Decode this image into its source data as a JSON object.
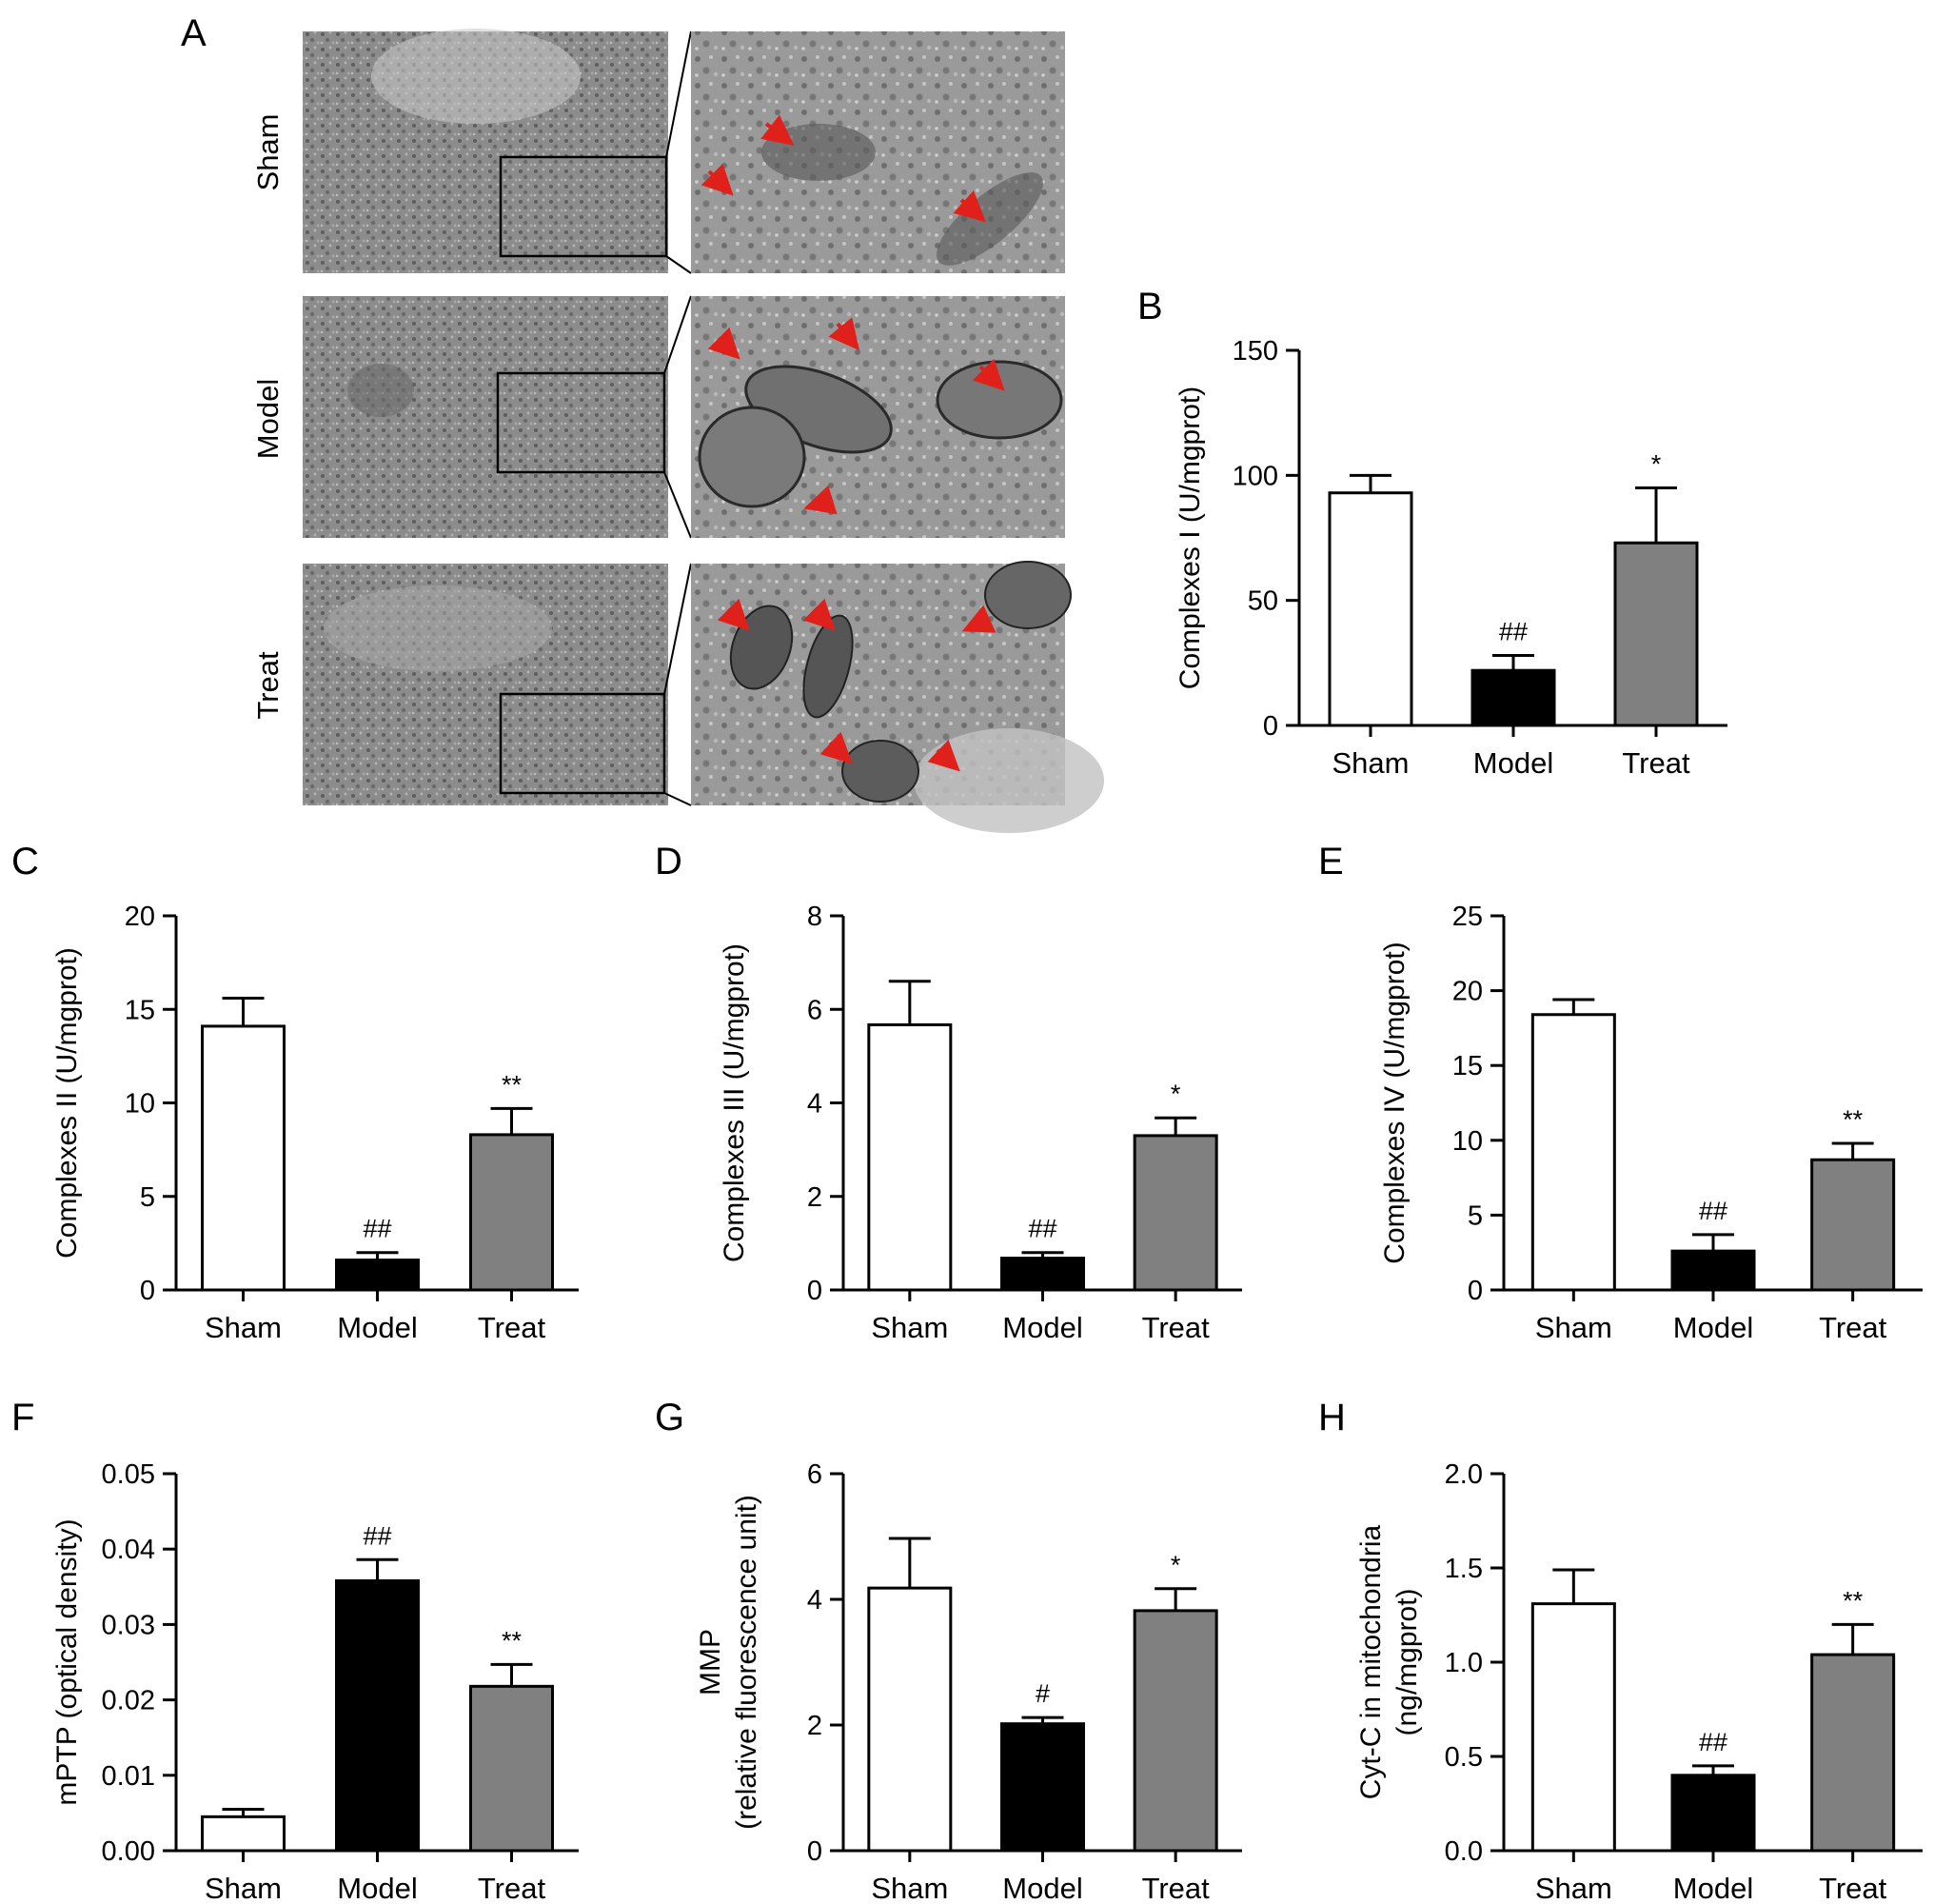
{
  "panel_a": {
    "label": "A",
    "groups": [
      "Sham",
      "Model",
      "Treat"
    ]
  },
  "chart_data": [
    {
      "panel": "B",
      "type": "bar",
      "categories": [
        "Sham",
        "Model",
        "Treat"
      ],
      "values": [
        93,
        22,
        73
      ],
      "errors": [
        7,
        6,
        22
      ],
      "significance": [
        "",
        "##",
        "*"
      ],
      "ylabel": "Complexes I (U/mgprot)",
      "ylim": [
        0,
        150
      ],
      "yticks": [
        "0",
        "50",
        "100",
        "150"
      ],
      "bar_colors": [
        "#ffffff",
        "#000000",
        "#808080"
      ]
    },
    {
      "panel": "C",
      "type": "bar",
      "categories": [
        "Sham",
        "Model",
        "Treat"
      ],
      "values": [
        14.1,
        1.6,
        8.3
      ],
      "errors": [
        1.5,
        0.4,
        1.4
      ],
      "significance": [
        "",
        "##",
        "**"
      ],
      "ylabel": "Complexes II (U/mgprot)",
      "ylim": [
        0,
        20
      ],
      "yticks": [
        "0",
        "5",
        "10",
        "15",
        "20"
      ],
      "bar_colors": [
        "#ffffff",
        "#000000",
        "#808080"
      ]
    },
    {
      "panel": "D",
      "type": "bar",
      "categories": [
        "Sham",
        "Model",
        "Treat"
      ],
      "values": [
        5.67,
        0.68,
        3.3
      ],
      "errors": [
        0.93,
        0.12,
        0.38
      ],
      "significance": [
        "",
        "##",
        "*"
      ],
      "ylabel": "Complexes III (U/mgprot)",
      "ylim": [
        0,
        8
      ],
      "yticks": [
        "0",
        "2",
        "4",
        "6",
        "8"
      ],
      "bar_colors": [
        "#ffffff",
        "#000000",
        "#808080"
      ]
    },
    {
      "panel": "E",
      "type": "bar",
      "categories": [
        "Sham",
        "Model",
        "Treat"
      ],
      "values": [
        18.4,
        2.6,
        8.7
      ],
      "errors": [
        1.0,
        1.1,
        1.1
      ],
      "significance": [
        "",
        "##",
        "**"
      ],
      "ylabel": "Complexes IV (U/mgprot)",
      "ylim": [
        0,
        25
      ],
      "yticks": [
        "0",
        "5",
        "10",
        "15",
        "20",
        "25"
      ],
      "bar_colors": [
        "#ffffff",
        "#000000",
        "#808080"
      ]
    },
    {
      "panel": "F",
      "type": "bar",
      "categories": [
        "Sham",
        "Model",
        "Treat"
      ],
      "values": [
        0.0045,
        0.0358,
        0.0218
      ],
      "errors": [
        0.001,
        0.0028,
        0.0029
      ],
      "significance": [
        "",
        "##",
        "**"
      ],
      "ylabel": "mPTP (optical density)",
      "ylim": [
        0,
        0.05
      ],
      "yticks": [
        "0.00",
        "0.01",
        "0.02",
        "0.03",
        "0.04",
        "0.05"
      ],
      "bar_colors": [
        "#ffffff",
        "#000000",
        "#808080"
      ]
    },
    {
      "panel": "G",
      "type": "bar",
      "categories": [
        "Sham",
        "Model",
        "Treat"
      ],
      "values": [
        4.18,
        2.02,
        3.82
      ],
      "errors": [
        0.79,
        0.1,
        0.35
      ],
      "significance": [
        "",
        "#",
        "*"
      ],
      "ylabel": [
        "MMP",
        "(relative fluorescence unit)"
      ],
      "ylim": [
        0,
        6
      ],
      "yticks": [
        "0",
        "2",
        "4",
        "6"
      ],
      "bar_colors": [
        "#ffffff",
        "#000000",
        "#808080"
      ]
    },
    {
      "panel": "H",
      "type": "bar",
      "categories": [
        "Sham",
        "Model",
        "Treat"
      ],
      "values": [
        1.31,
        0.4,
        1.04
      ],
      "errors": [
        0.18,
        0.05,
        0.16
      ],
      "significance": [
        "",
        "##",
        "**"
      ],
      "ylabel": [
        "Cyt-C in mitochondria",
        "(ng/mgprot)"
      ],
      "ylim": [
        0,
        2.0
      ],
      "yticks": [
        "0.0",
        "0.5",
        "1.0",
        "1.5",
        "2.0"
      ],
      "bar_colors": [
        "#ffffff",
        "#000000",
        "#808080"
      ]
    }
  ]
}
